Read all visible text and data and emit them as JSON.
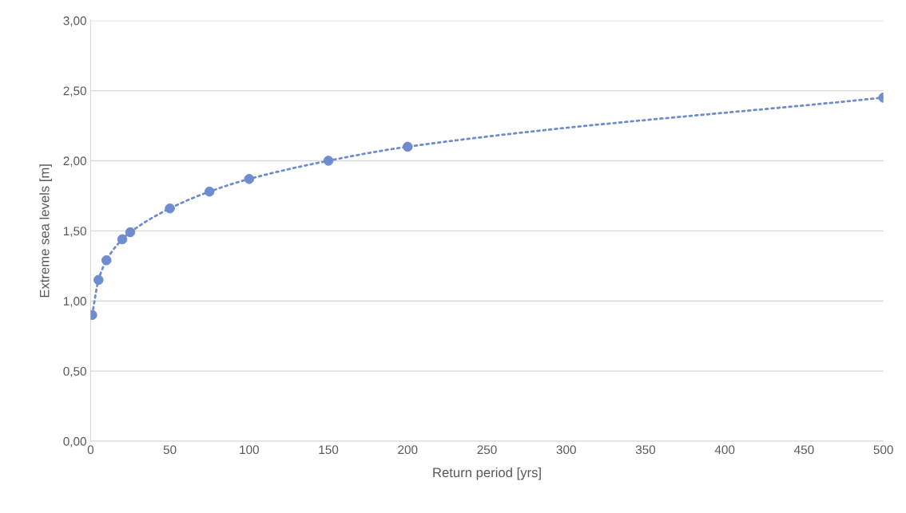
{
  "chart_data": {
    "type": "line",
    "xlabel": "Return period [yrs]",
    "ylabel": "Extreme sea levels [m]",
    "x": [
      1,
      5,
      10,
      20,
      25,
      50,
      75,
      100,
      150,
      200,
      500
    ],
    "series": [
      {
        "color": "#6f8ccf",
        "values": [
          0.9,
          1.15,
          1.29,
          1.44,
          1.49,
          1.66,
          1.78,
          1.87,
          2.0,
          2.1,
          2.45
        ]
      }
    ],
    "xlim": [
      0,
      500
    ],
    "xticks": [
      0,
      50,
      100,
      150,
      200,
      250,
      300,
      350,
      400,
      450,
      500
    ],
    "ylim": [
      0,
      3
    ],
    "yticks": [
      {
        "value": 0,
        "label": "0,00"
      },
      {
        "value": 0.5,
        "label": "0,50"
      },
      {
        "value": 1,
        "label": "1,00"
      },
      {
        "value": 1.5,
        "label": "1,50"
      },
      {
        "value": 2,
        "label": "2,00"
      },
      {
        "value": 2.5,
        "label": "2,50"
      },
      {
        "value": 3,
        "label": "3,00"
      }
    ],
    "grid": "y",
    "marker": "circle",
    "line_style": "dotted"
  }
}
